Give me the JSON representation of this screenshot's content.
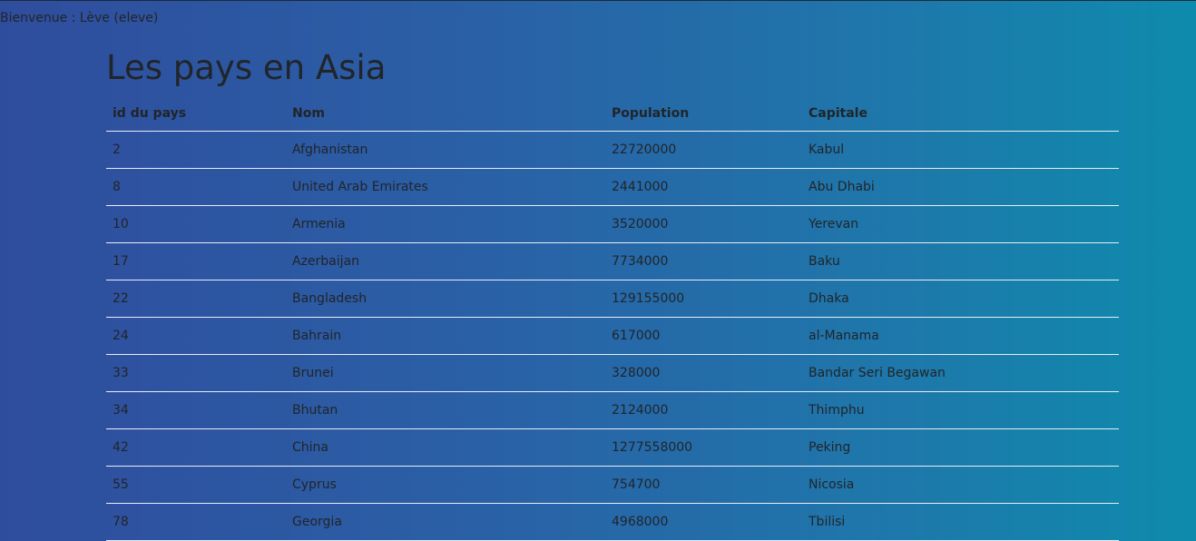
{
  "header": {
    "welcome_label": "Bienvenue : Lève (eleve)"
  },
  "main": {
    "title": "Les pays en Asia",
    "table": {
      "columns": [
        "id du pays",
        "Nom",
        "Population",
        "Capitale"
      ],
      "rows": [
        {
          "id": "2",
          "nom": "Afghanistan",
          "population": "22720000",
          "capitale": "Kabul"
        },
        {
          "id": "8",
          "nom": "United Arab Emirates",
          "population": "2441000",
          "capitale": "Abu Dhabi"
        },
        {
          "id": "10",
          "nom": "Armenia",
          "population": "3520000",
          "capitale": "Yerevan"
        },
        {
          "id": "17",
          "nom": "Azerbaijan",
          "population": "7734000",
          "capitale": "Baku"
        },
        {
          "id": "22",
          "nom": "Bangladesh",
          "population": "129155000",
          "capitale": "Dhaka"
        },
        {
          "id": "24",
          "nom": "Bahrain",
          "population": "617000",
          "capitale": "al-Manama"
        },
        {
          "id": "33",
          "nom": "Brunei",
          "population": "328000",
          "capitale": "Bandar Seri Begawan"
        },
        {
          "id": "34",
          "nom": "Bhutan",
          "population": "2124000",
          "capitale": "Thimphu"
        },
        {
          "id": "42",
          "nom": "China",
          "population": "1277558000",
          "capitale": "Peking"
        },
        {
          "id": "55",
          "nom": "Cyprus",
          "population": "754700",
          "capitale": "Nicosia"
        },
        {
          "id": "78",
          "nom": "Georgia",
          "population": "4968000",
          "capitale": "Tbilisi"
        }
      ]
    }
  }
}
